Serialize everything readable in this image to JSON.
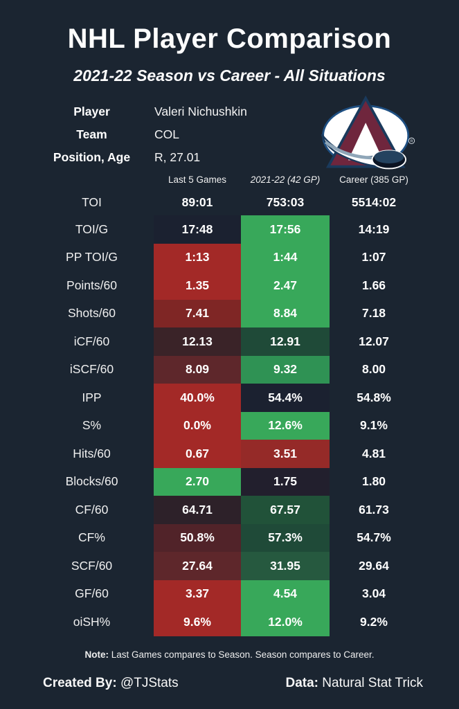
{
  "title": "NHL Player Comparison",
  "subtitle": "2021-22 Season vs Career - All Situations",
  "player_info": {
    "fields": [
      {
        "label": "Player",
        "value": "Valeri Nichushkin"
      },
      {
        "label": "Team",
        "value": "COL"
      },
      {
        "label": "Position, Age",
        "value": "R, 27.01"
      }
    ],
    "team_logo": "colorado-avalanche"
  },
  "palette": {
    "background": "#1b2531",
    "text": "#ffffff",
    "navy": "#1b2130",
    "navy2": "#221f2d",
    "red": "#a32927",
    "red_med": "#952a28",
    "red_dark1": "#7f2625",
    "red_dark2": "#5e272b",
    "red_dark3": "#512329",
    "maroon": "#3a2328",
    "maroon2": "#2d2129",
    "green": "#38a85a",
    "green_med": "#2f9254",
    "green_dark1": "#26593f",
    "green_dark2": "#1f4a38",
    "green_dark3": "#215239",
    "logo_burgundy": "#6f263d",
    "logo_blue": "#1e4f82"
  },
  "chart_data": {
    "type": "table",
    "title": "NHL Player Comparison",
    "subtitle": "2021-22 Season vs Career - All Situations",
    "columns": [
      "Last 5 Games",
      "2021-22 (42 GP)",
      "Career (385 GP)"
    ],
    "rows": [
      {
        "label": "TOI",
        "values": [
          "89:01",
          "753:03",
          "5514:02"
        ],
        "cell_colors": [
          "none",
          "none",
          "none"
        ]
      },
      {
        "label": "TOI/G",
        "values": [
          "17:48",
          "17:56",
          "14:19"
        ],
        "cell_colors": [
          "navy",
          "green",
          "none"
        ]
      },
      {
        "label": "PP TOI/G",
        "values": [
          "1:13",
          "1:44",
          "1:07"
        ],
        "cell_colors": [
          "red",
          "green",
          "none"
        ]
      },
      {
        "label": "Points/60",
        "values": [
          "1.35",
          "2.47",
          "1.66"
        ],
        "cell_colors": [
          "red",
          "green",
          "none"
        ]
      },
      {
        "label": "Shots/60",
        "values": [
          "7.41",
          "8.84",
          "7.18"
        ],
        "cell_colors": [
          "red_dark1",
          "green",
          "none"
        ]
      },
      {
        "label": "iCF/60",
        "values": [
          "12.13",
          "12.91",
          "12.07"
        ],
        "cell_colors": [
          "maroon",
          "green_dark2",
          "none"
        ]
      },
      {
        "label": "iSCF/60",
        "values": [
          "8.09",
          "9.32",
          "8.00"
        ],
        "cell_colors": [
          "red_dark2",
          "green_med",
          "none"
        ]
      },
      {
        "label": "IPP",
        "values": [
          "40.0%",
          "54.4%",
          "54.8%"
        ],
        "cell_colors": [
          "red",
          "navy",
          "none"
        ]
      },
      {
        "label": "S%",
        "values": [
          "0.0%",
          "12.6%",
          "9.1%"
        ],
        "cell_colors": [
          "red",
          "green",
          "none"
        ]
      },
      {
        "label": "Hits/60",
        "values": [
          "0.67",
          "3.51",
          "4.81"
        ],
        "cell_colors": [
          "red",
          "red_med",
          "none"
        ]
      },
      {
        "label": "Blocks/60",
        "values": [
          "2.70",
          "1.75",
          "1.80"
        ],
        "cell_colors": [
          "green",
          "navy2",
          "none"
        ]
      },
      {
        "label": "CF/60",
        "values": [
          "64.71",
          "67.57",
          "61.73"
        ],
        "cell_colors": [
          "maroon2",
          "green_dark3",
          "none"
        ]
      },
      {
        "label": "CF%",
        "values": [
          "50.8%",
          "57.3%",
          "54.7%"
        ],
        "cell_colors": [
          "red_dark3",
          "green_dark2",
          "none"
        ]
      },
      {
        "label": "SCF/60",
        "values": [
          "27.64",
          "31.95",
          "29.64"
        ],
        "cell_colors": [
          "red_dark2",
          "green_dark1",
          "none"
        ]
      },
      {
        "label": "GF/60",
        "values": [
          "3.37",
          "4.54",
          "3.04"
        ],
        "cell_colors": [
          "red",
          "green",
          "none"
        ]
      },
      {
        "label": "oiSH%",
        "values": [
          "9.6%",
          "12.0%",
          "9.2%"
        ],
        "cell_colors": [
          "red",
          "green",
          "none"
        ]
      }
    ],
    "note": "Last Games compares to Season. Season compares to Career."
  },
  "note": {
    "prefix": "Note:",
    "text": "Last Games compares to Season. Season compares to Career."
  },
  "footer": {
    "created_by_label": "Created By:",
    "created_by_value": "@TJStats",
    "data_label": "Data:",
    "data_value": "Natural Stat Trick"
  }
}
